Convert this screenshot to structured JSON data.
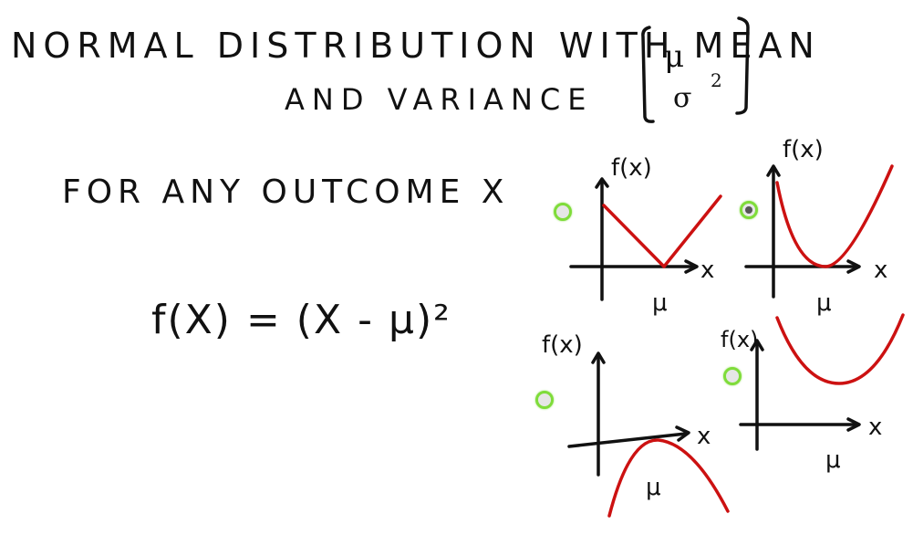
{
  "title": {
    "line1": "NORMAL DISTRIBUTION WITH MEAN",
    "line2": "AND VARIANCE",
    "param_mean": "μ",
    "param_variance": "σ",
    "param_variance_exp": "2"
  },
  "prompt": "FOR ANY OUTCOME X",
  "formula": "f(X) = (X - μ)²",
  "options": [
    {
      "id": "top-left",
      "ylabel": "f(x)",
      "xlabel": "x",
      "mu_label": "μ",
      "curve": "v-shape",
      "selected": false
    },
    {
      "id": "top-right",
      "ylabel": "f(x)",
      "xlabel": "x",
      "mu_label": "μ",
      "curve": "parabola-up",
      "selected": true
    },
    {
      "id": "bottom-left",
      "ylabel": "f(x)",
      "xlabel": "x",
      "mu_label": "μ",
      "curve": "parabola-down",
      "selected": false
    },
    {
      "id": "bottom-right",
      "ylabel": "f(x)",
      "xlabel": "x",
      "mu_label": "μ",
      "curve": "shifted-parabola-up",
      "selected": false
    }
  ],
  "colors": {
    "ink": "#111111",
    "curve": "#cc1111",
    "radio_ring": "#7fdc3a"
  }
}
